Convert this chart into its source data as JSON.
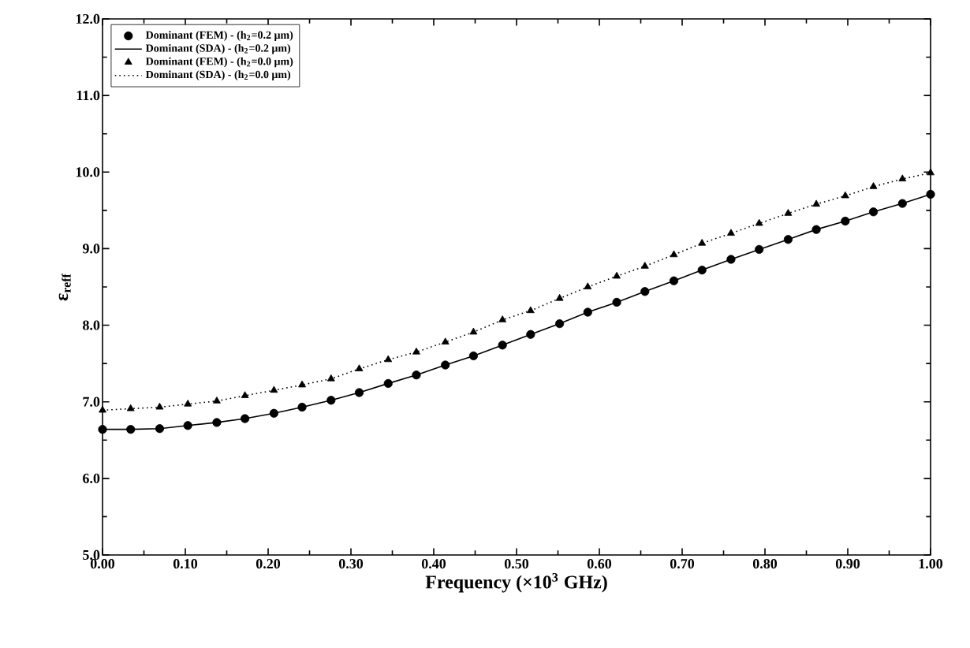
{
  "chart_data": {
    "type": "scatter",
    "xlabel": "Frequency (×10$^{3}$ GHz)",
    "ylabel": "ε$_{reff}$",
    "x": [
      0,
      0.034,
      0.069,
      0.103,
      0.138,
      0.172,
      0.207,
      0.241,
      0.276,
      0.31,
      0.345,
      0.379,
      0.414,
      0.448,
      0.483,
      0.517,
      0.552,
      0.586,
      0.621,
      0.655,
      0.69,
      0.724,
      0.759,
      0.793,
      0.828,
      0.862,
      0.897,
      0.931,
      0.966,
      1.0
    ],
    "series": [
      {
        "name": "Dominant (FEM) - (h$_{2}$=0.2 μm)",
        "marker": "circle",
        "color": "#000000",
        "values": [
          6.64,
          6.64,
          6.65,
          6.69,
          6.73,
          6.78,
          6.85,
          6.93,
          7.02,
          7.12,
          7.24,
          7.35,
          7.48,
          7.6,
          7.74,
          7.88,
          8.02,
          8.17,
          8.3,
          8.44,
          8.58,
          8.72,
          8.86,
          8.99,
          9.12,
          9.25,
          9.36,
          9.48,
          9.59,
          9.71
        ]
      },
      {
        "name": "Dominant (SDA) - (h$_{2}$=0.2 μm)",
        "type": "line",
        "line_style": "solid",
        "color": "#000000",
        "values": [
          6.64,
          6.64,
          6.65,
          6.69,
          6.73,
          6.78,
          6.85,
          6.93,
          7.02,
          7.12,
          7.24,
          7.35,
          7.48,
          7.6,
          7.74,
          7.88,
          8.02,
          8.17,
          8.3,
          8.44,
          8.58,
          8.72,
          8.86,
          8.99,
          9.12,
          9.25,
          9.36,
          9.48,
          9.59,
          9.71
        ]
      },
      {
        "name": "Dominant (FEM) - (h$_{2}$=0.0 μm)",
        "marker": "triangle",
        "color": "#000000",
        "values": [
          6.89,
          6.91,
          6.93,
          6.97,
          7.01,
          7.08,
          7.15,
          7.22,
          7.3,
          7.43,
          7.55,
          7.65,
          7.78,
          7.91,
          8.07,
          8.19,
          8.35,
          8.5,
          8.64,
          8.77,
          8.92,
          9.07,
          9.2,
          9.33,
          9.46,
          9.58,
          9.69,
          9.81,
          9.91,
          9.99
        ]
      },
      {
        "name": "Dominant (SDA) - (h$_{2}$=0.0 μm)",
        "type": "line",
        "line_style": "dotted",
        "color": "#000000",
        "values": [
          6.89,
          6.91,
          6.93,
          6.97,
          7.01,
          7.08,
          7.15,
          7.22,
          7.3,
          7.43,
          7.55,
          7.65,
          7.78,
          7.91,
          8.07,
          8.19,
          8.35,
          8.5,
          8.64,
          8.77,
          8.92,
          9.07,
          9.2,
          9.33,
          9.46,
          9.58,
          9.69,
          9.81,
          9.91,
          9.99
        ]
      }
    ],
    "xlim": [
      0,
      1.0
    ],
    "xticks": [
      {
        "value": 0,
        "label": "0.00"
      },
      {
        "value": 0.1,
        "label": "0.10"
      },
      {
        "value": 0.2,
        "label": "0.20"
      },
      {
        "value": 0.3,
        "label": "0.30"
      },
      {
        "value": 0.4,
        "label": "0.40"
      },
      {
        "value": 0.5,
        "label": "0.50"
      },
      {
        "value": 0.6,
        "label": "0.60"
      },
      {
        "value": 0.7,
        "label": "0.70"
      },
      {
        "value": 0.8,
        "label": "0.80"
      },
      {
        "value": 0.9,
        "label": "0.90"
      },
      {
        "value": 1.0,
        "label": "1.00"
      }
    ],
    "ylim": [
      5,
      12
    ],
    "yticks": [
      {
        "value": 5,
        "label": "5.0"
      },
      {
        "value": 6,
        "label": "6.0"
      },
      {
        "value": 7,
        "label": "7.0"
      },
      {
        "value": 8,
        "label": "8.0"
      },
      {
        "value": 9,
        "label": "9.0"
      },
      {
        "value": 10,
        "label": "10.0"
      },
      {
        "value": 11,
        "label": "11.0"
      },
      {
        "value": 12,
        "label": "12.0"
      }
    ],
    "grid": false,
    "legend": "top left"
  }
}
